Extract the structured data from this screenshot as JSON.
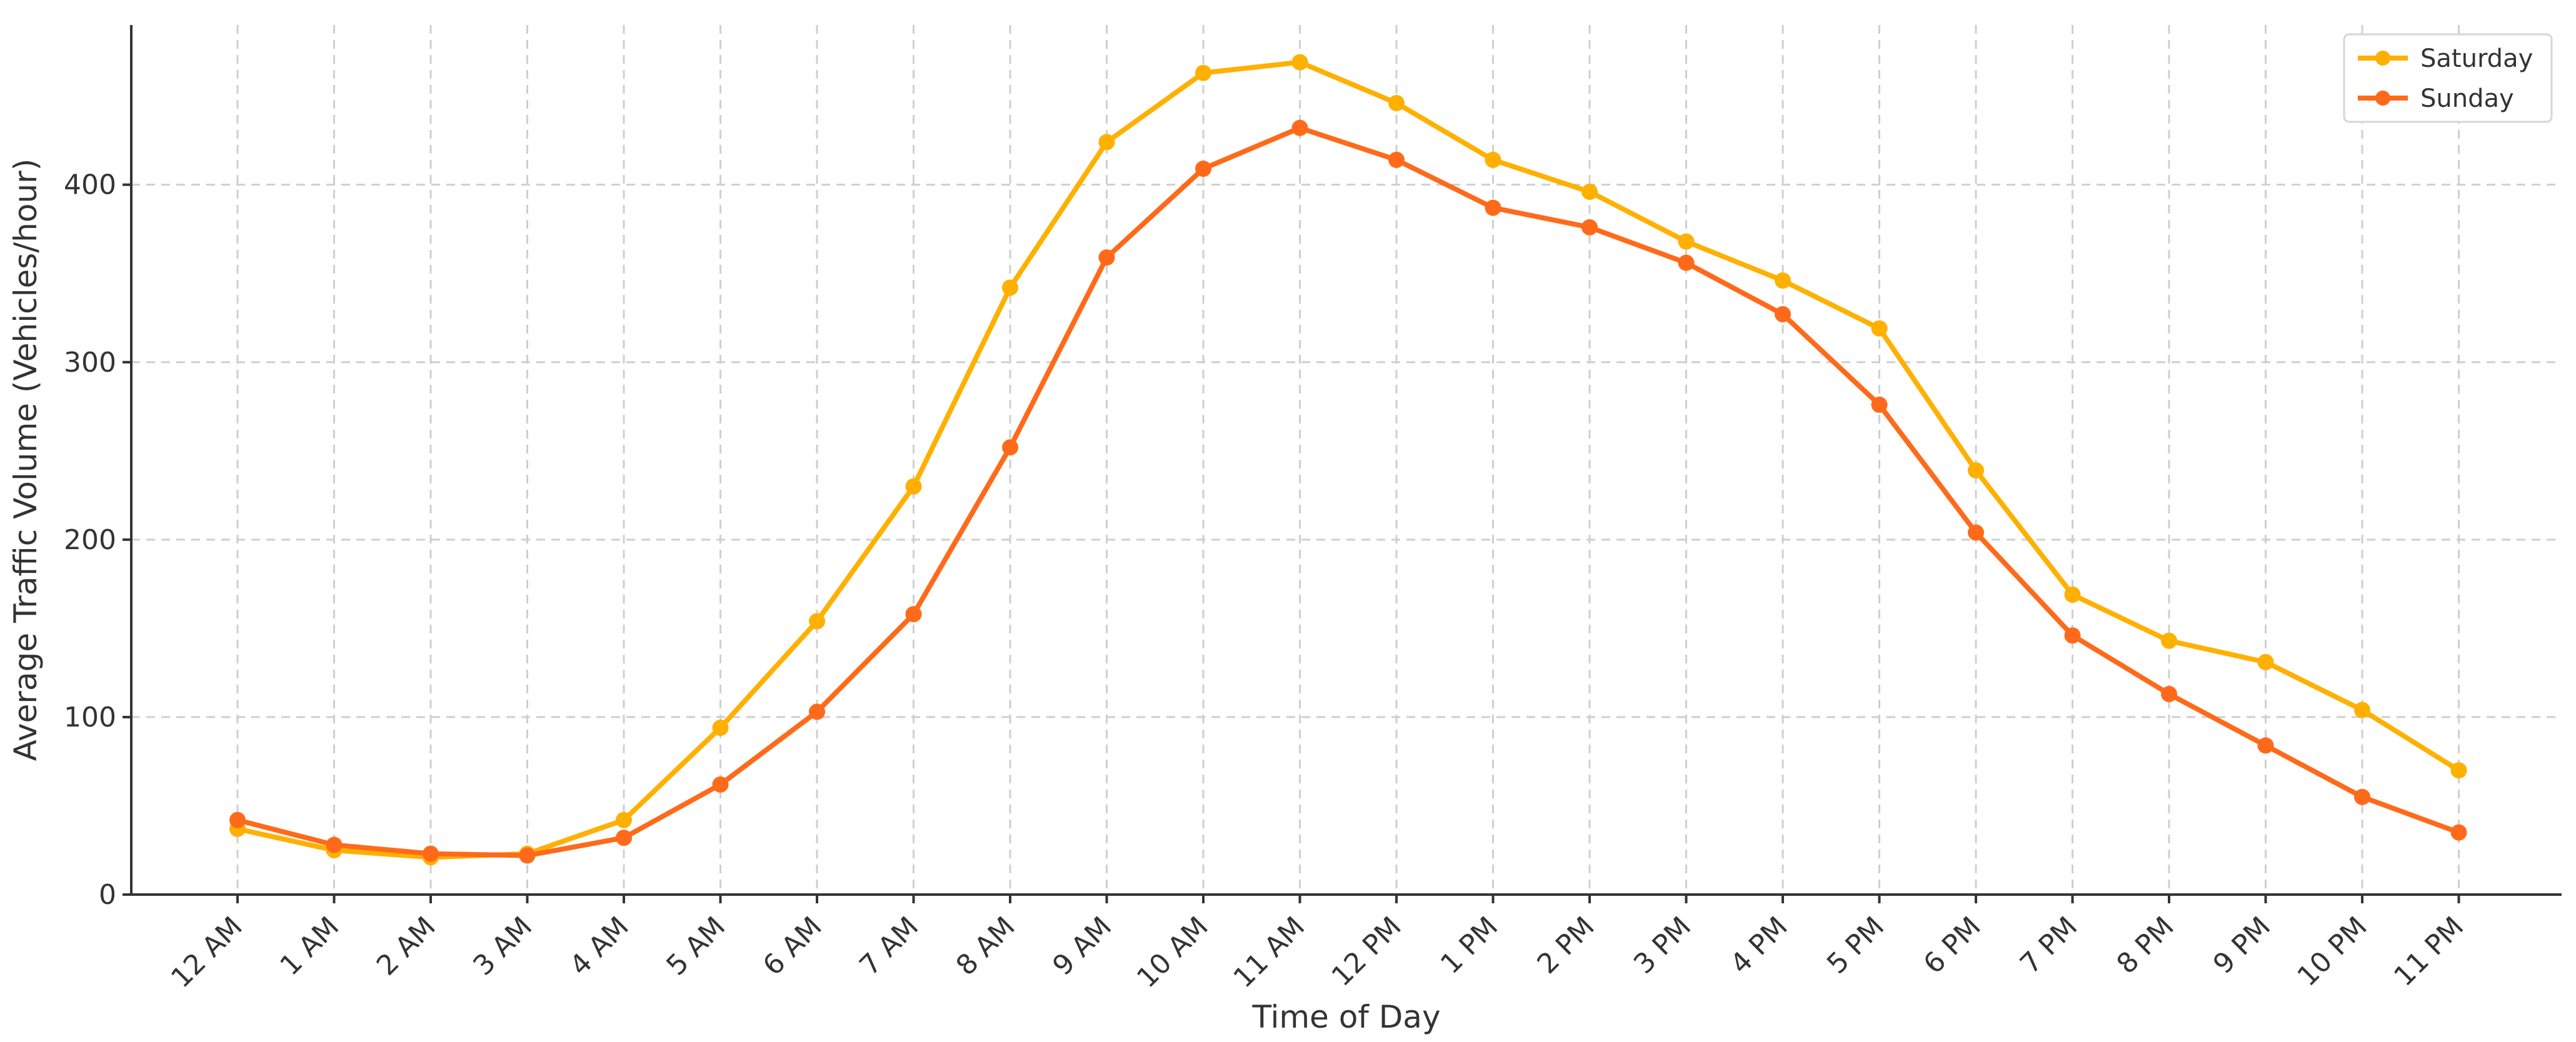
{
  "colors": {
    "saturday": "#ffb000",
    "sunday": "#ff6a1a",
    "grid": "#cfcfcf",
    "axis": "#333333"
  },
  "chart_data": {
    "type": "line",
    "title": "",
    "xlabel": "Time of Day",
    "ylabel": "Average Traffic Volume (Vehicles/hour)",
    "categories": [
      "12 AM",
      "1 AM",
      "2 AM",
      "3 AM",
      "4 AM",
      "5 AM",
      "6 AM",
      "7 AM",
      "8 AM",
      "9 AM",
      "10 AM",
      "11 AM",
      "12 PM",
      "1 PM",
      "2 PM",
      "3 PM",
      "4 PM",
      "5 PM",
      "6 PM",
      "7 PM",
      "8 PM",
      "9 PM",
      "10 PM",
      "11 PM"
    ],
    "yticks": [
      0,
      100,
      200,
      300,
      400
    ],
    "ylim": [
      0,
      490
    ],
    "grid": true,
    "legend_position": "top-right",
    "series": [
      {
        "name": "Saturday",
        "color": "#ffb000",
        "marker": "circle",
        "values": [
          37,
          25,
          21,
          23,
          42,
          94,
          154,
          230,
          342,
          424,
          463,
          469,
          446,
          414,
          396,
          368,
          346,
          319,
          239,
          169,
          143,
          131,
          104,
          70
        ]
      },
      {
        "name": "Sunday",
        "color": "#ff6a1a",
        "marker": "circle",
        "values": [
          42,
          28,
          23,
          22,
          32,
          62,
          103,
          158,
          252,
          359,
          409,
          432,
          414,
          387,
          376,
          356,
          327,
          276,
          204,
          146,
          113,
          84,
          55,
          35
        ]
      }
    ]
  }
}
